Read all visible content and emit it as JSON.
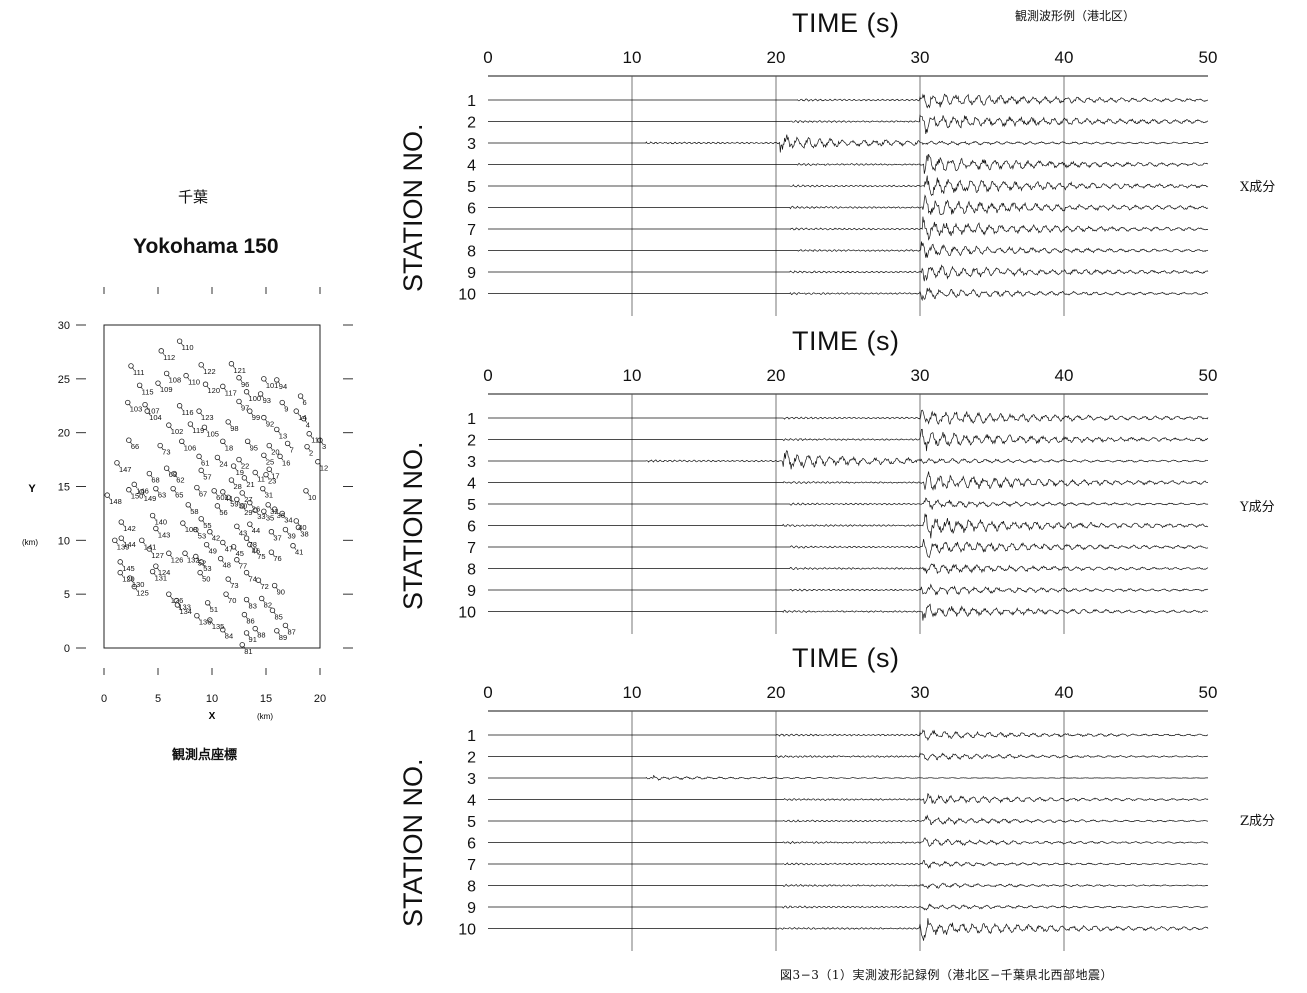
{
  "header_caption": "観測波形例（港北区）",
  "figure_caption": "図3−3（1）実測波形記録例（港北区−千葉県北西部地震）",
  "map": {
    "region_label": "千葉",
    "title": "Yokohama 150",
    "x_label": "X",
    "x_unit": "(km)",
    "y_label": "Y",
    "y_unit": "(km)",
    "x_ticks": [
      "0",
      "5",
      "10",
      "15",
      "20"
    ],
    "y_ticks": [
      "0",
      "5",
      "10",
      "15",
      "20",
      "25",
      "30"
    ],
    "caption": "観測点座標",
    "stations": [
      {
        "id": "110",
        "x": 7.0,
        "y": 28.5
      },
      {
        "id": "112",
        "x": 5.3,
        "y": 27.6
      },
      {
        "id": "111",
        "x": 2.5,
        "y": 26.2
      },
      {
        "id": "122",
        "x": 9.0,
        "y": 26.3
      },
      {
        "id": "121",
        "x": 11.8,
        "y": 26.4
      },
      {
        "id": "108",
        "x": 5.8,
        "y": 25.5
      },
      {
        "id": "110",
        "x": 7.6,
        "y": 25.3
      },
      {
        "id": "96",
        "x": 12.5,
        "y": 25.1
      },
      {
        "id": "101",
        "x": 14.8,
        "y": 25.0
      },
      {
        "id": "94",
        "x": 16.0,
        "y": 24.9
      },
      {
        "id": "115",
        "x": 3.3,
        "y": 24.4
      },
      {
        "id": "109",
        "x": 5.0,
        "y": 24.6
      },
      {
        "id": "120",
        "x": 9.4,
        "y": 24.5
      },
      {
        "id": "117",
        "x": 11.0,
        "y": 24.3
      },
      {
        "id": "100",
        "x": 13.2,
        "y": 23.8
      },
      {
        "id": "93",
        "x": 14.5,
        "y": 23.6
      },
      {
        "id": "6",
        "x": 18.2,
        "y": 23.4
      },
      {
        "id": "103",
        "x": 2.2,
        "y": 22.8
      },
      {
        "id": "107",
        "x": 3.8,
        "y": 22.6
      },
      {
        "id": "116",
        "x": 7.0,
        "y": 22.5
      },
      {
        "id": "97",
        "x": 12.5,
        "y": 22.9
      },
      {
        "id": "104",
        "x": 4.0,
        "y": 22.0
      },
      {
        "id": "123",
        "x": 8.8,
        "y": 22.0
      },
      {
        "id": "99",
        "x": 13.5,
        "y": 22.0
      },
      {
        "id": "14",
        "x": 17.8,
        "y": 22.0
      },
      {
        "id": "92",
        "x": 14.8,
        "y": 21.4
      },
      {
        "id": "9",
        "x": 16.5,
        "y": 22.8
      },
      {
        "id": "98",
        "x": 11.5,
        "y": 21.0
      },
      {
        "id": "4",
        "x": 18.5,
        "y": 21.3
      },
      {
        "id": "102",
        "x": 6.0,
        "y": 20.7
      },
      {
        "id": "119",
        "x": 8.0,
        "y": 20.8
      },
      {
        "id": "105",
        "x": 9.3,
        "y": 20.5
      },
      {
        "id": "13",
        "x": 16.0,
        "y": 20.3
      },
      {
        "id": "111",
        "x": 19.0,
        "y": 19.9
      },
      {
        "id": "66",
        "x": 2.3,
        "y": 19.3
      },
      {
        "id": "106",
        "x": 7.2,
        "y": 19.2
      },
      {
        "id": "18",
        "x": 11.0,
        "y": 19.2
      },
      {
        "id": "95",
        "x": 13.3,
        "y": 19.2
      },
      {
        "id": "20",
        "x": 15.3,
        "y": 18.8
      },
      {
        "id": "7",
        "x": 17.0,
        "y": 19.0
      },
      {
        "id": "3",
        "x": 20.0,
        "y": 19.3
      },
      {
        "id": "73",
        "x": 5.2,
        "y": 18.8
      },
      {
        "id": "2",
        "x": 18.8,
        "y": 18.7
      },
      {
        "id": "61",
        "x": 8.8,
        "y": 17.8
      },
      {
        "id": "24",
        "x": 10.5,
        "y": 17.7
      },
      {
        "id": "25",
        "x": 14.8,
        "y": 17.9
      },
      {
        "id": "16",
        "x": 16.3,
        "y": 17.8
      },
      {
        "id": "147",
        "x": 1.2,
        "y": 17.2
      },
      {
        "id": "22",
        "x": 12.5,
        "y": 17.5
      },
      {
        "id": "12",
        "x": 19.8,
        "y": 17.3
      },
      {
        "id": "69",
        "x": 5.8,
        "y": 16.7
      },
      {
        "id": "19",
        "x": 12.0,
        "y": 16.9
      },
      {
        "id": "17",
        "x": 15.3,
        "y": 16.6
      },
      {
        "id": "68",
        "x": 4.2,
        "y": 16.2
      },
      {
        "id": "62",
        "x": 6.5,
        "y": 16.2
      },
      {
        "id": "57",
        "x": 9.0,
        "y": 16.5
      },
      {
        "id": "11",
        "x": 14.0,
        "y": 16.3
      },
      {
        "id": "21",
        "x": 13.0,
        "y": 15.8
      },
      {
        "id": "23",
        "x": 15.0,
        "y": 16.1
      },
      {
        "id": "28",
        "x": 11.8,
        "y": 15.6
      },
      {
        "id": "146",
        "x": 2.8,
        "y": 15.2
      },
      {
        "id": "150",
        "x": 2.3,
        "y": 14.7
      },
      {
        "id": "149",
        "x": 3.5,
        "y": 14.5
      },
      {
        "id": "63",
        "x": 4.8,
        "y": 14.8
      },
      {
        "id": "65",
        "x": 6.4,
        "y": 14.8
      },
      {
        "id": "31",
        "x": 14.7,
        "y": 14.8
      },
      {
        "id": "10",
        "x": 18.7,
        "y": 14.6
      },
      {
        "id": "148",
        "x": 0.3,
        "y": 14.2
      },
      {
        "id": "67",
        "x": 8.6,
        "y": 14.9
      },
      {
        "id": "60",
        "x": 10.2,
        "y": 14.6
      },
      {
        "id": "41",
        "x": 11.0,
        "y": 14.5
      },
      {
        "id": "27",
        "x": 12.8,
        "y": 14.4
      },
      {
        "id": "59",
        "x": 11.5,
        "y": 14.0
      },
      {
        "id": "30",
        "x": 12.3,
        "y": 13.8
      },
      {
        "id": "26",
        "x": 13.5,
        "y": 13.5
      },
      {
        "id": "58",
        "x": 7.8,
        "y": 13.3
      },
      {
        "id": "56",
        "x": 10.5,
        "y": 13.2
      },
      {
        "id": "29",
        "x": 12.8,
        "y": 13.2
      },
      {
        "id": "32",
        "x": 15.2,
        "y": 13.3
      },
      {
        "id": "33",
        "x": 14.0,
        "y": 12.8
      },
      {
        "id": "35",
        "x": 14.8,
        "y": 12.7
      },
      {
        "id": "36",
        "x": 15.8,
        "y": 12.9
      },
      {
        "id": "34",
        "x": 16.5,
        "y": 12.5
      },
      {
        "id": "140",
        "x": 4.5,
        "y": 12.3
      },
      {
        "id": "55",
        "x": 9.0,
        "y": 12.0
      },
      {
        "id": "142",
        "x": 1.6,
        "y": 11.7
      },
      {
        "id": "40",
        "x": 17.8,
        "y": 11.8
      },
      {
        "id": "108",
        "x": 7.3,
        "y": 11.6
      },
      {
        "id": "43",
        "x": 12.3,
        "y": 11.3
      },
      {
        "id": "44",
        "x": 13.5,
        "y": 11.5
      },
      {
        "id": "143",
        "x": 4.8,
        "y": 11.1
      },
      {
        "id": "53",
        "x": 8.5,
        "y": 11.0
      },
      {
        "id": "42",
        "x": 9.8,
        "y": 10.8
      },
      {
        "id": "37",
        "x": 15.5,
        "y": 10.8
      },
      {
        "id": "39",
        "x": 16.8,
        "y": 11.0
      },
      {
        "id": "38",
        "x": 18.0,
        "y": 11.2
      },
      {
        "id": "144",
        "x": 1.6,
        "y": 10.2
      },
      {
        "id": "139",
        "x": 1.0,
        "y": 10.0
      },
      {
        "id": "141",
        "x": 3.5,
        "y": 10.0
      },
      {
        "id": "78",
        "x": 13.2,
        "y": 10.2
      },
      {
        "id": "47",
        "x": 11.0,
        "y": 9.8
      },
      {
        "id": "49",
        "x": 9.5,
        "y": 9.6
      },
      {
        "id": "45",
        "x": 12.0,
        "y": 9.4
      },
      {
        "id": "46",
        "x": 13.5,
        "y": 9.6
      },
      {
        "id": "127",
        "x": 4.2,
        "y": 9.2
      },
      {
        "id": "75",
        "x": 14.0,
        "y": 9.1
      },
      {
        "id": "76",
        "x": 15.5,
        "y": 8.9
      },
      {
        "id": "41",
        "x": 17.5,
        "y": 9.5
      },
      {
        "id": "126",
        "x": 6.0,
        "y": 8.8
      },
      {
        "id": "132",
        "x": 7.5,
        "y": 8.8
      },
      {
        "id": "52",
        "x": 8.5,
        "y": 8.5
      },
      {
        "id": "48",
        "x": 10.8,
        "y": 8.3
      },
      {
        "id": "77",
        "x": 12.3,
        "y": 8.2
      },
      {
        "id": "145",
        "x": 1.5,
        "y": 8.0
      },
      {
        "id": "124",
        "x": 4.8,
        "y": 7.6
      },
      {
        "id": "53",
        "x": 9.0,
        "y": 8.0
      },
      {
        "id": "129",
        "x": 1.5,
        "y": 7.0
      },
      {
        "id": "131",
        "x": 4.5,
        "y": 7.1
      },
      {
        "id": "50",
        "x": 8.9,
        "y": 7.0
      },
      {
        "id": "74",
        "x": 13.2,
        "y": 7.0
      },
      {
        "id": "130",
        "x": 2.4,
        "y": 6.5
      },
      {
        "id": "73",
        "x": 11.5,
        "y": 6.4
      },
      {
        "id": "72",
        "x": 14.3,
        "y": 6.3
      },
      {
        "id": "125",
        "x": 2.8,
        "y": 5.7
      },
      {
        "id": "90",
        "x": 15.8,
        "y": 5.8
      },
      {
        "id": "70",
        "x": 11.3,
        "y": 5.0
      },
      {
        "id": "126",
        "x": 6.0,
        "y": 5.0
      },
      {
        "id": "83",
        "x": 13.2,
        "y": 4.5
      },
      {
        "id": "82",
        "x": 14.6,
        "y": 4.6
      },
      {
        "id": "133",
        "x": 6.7,
        "y": 4.4
      },
      {
        "id": "134",
        "x": 6.8,
        "y": 4.0
      },
      {
        "id": "51",
        "x": 9.6,
        "y": 4.2
      },
      {
        "id": "85",
        "x": 15.6,
        "y": 3.5
      },
      {
        "id": "136",
        "x": 8.6,
        "y": 3.0
      },
      {
        "id": "86",
        "x": 13.0,
        "y": 3.1
      },
      {
        "id": "135",
        "x": 9.8,
        "y": 2.6
      },
      {
        "id": "87",
        "x": 16.8,
        "y": 2.1
      },
      {
        "id": "84",
        "x": 11.0,
        "y": 1.7
      },
      {
        "id": "88",
        "x": 14.0,
        "y": 1.8
      },
      {
        "id": "89",
        "x": 16.0,
        "y": 1.6
      },
      {
        "id": "91",
        "x": 13.2,
        "y": 1.4
      },
      {
        "id": "81",
        "x": 12.8,
        "y": 0.3
      }
    ]
  },
  "chart_data": [
    {
      "type": "line",
      "title": "TIME (s)",
      "ylabel": "STATION NO.",
      "component_label": "X成分",
      "x_ticks": [
        "0",
        "10",
        "20",
        "30",
        "40",
        "50"
      ],
      "xlim": [
        0,
        50
      ],
      "stations": [
        "1",
        "2",
        "3",
        "4",
        "5",
        "6",
        "7",
        "8",
        "9",
        "10"
      ],
      "onsets": [
        21.5,
        21.0,
        11.0,
        21.5,
        21.0,
        21.0,
        21.0,
        21.5,
        21.0,
        21.0
      ],
      "s_arrivals": [
        30.0,
        30.0,
        20.3,
        30.3,
        30.3,
        30.2,
        30.2,
        30.1,
        30.1,
        30.0
      ],
      "peak_amplitudes": [
        0.9,
        1.0,
        0.7,
        0.9,
        1.0,
        1.0,
        0.9,
        0.7,
        0.8,
        0.6
      ]
    },
    {
      "type": "line",
      "title": "TIME (s)",
      "ylabel": "STATION NO.",
      "component_label": "Y成分",
      "x_ticks": [
        "0",
        "10",
        "20",
        "30",
        "40",
        "50"
      ],
      "xlim": [
        0,
        50
      ],
      "stations": [
        "1",
        "2",
        "3",
        "4",
        "5",
        "6",
        "7",
        "8",
        "9",
        "10"
      ],
      "onsets": [
        20.5,
        20.5,
        11.0,
        20.5,
        21.0,
        20.5,
        21.0,
        21.0,
        21.0,
        20.5
      ],
      "s_arrivals": [
        30.0,
        30.0,
        20.5,
        30.3,
        30.3,
        30.2,
        30.2,
        30.2,
        30.1,
        30.2
      ],
      "peak_amplitudes": [
        0.9,
        0.9,
        0.8,
        1.0,
        0.5,
        1.0,
        0.8,
        0.6,
        0.6,
        0.7
      ]
    },
    {
      "type": "line",
      "title": "TIME (s)",
      "ylabel": "STATION NO.",
      "component_label": "Z成分",
      "x_ticks": [
        "0",
        "10",
        "20",
        "30",
        "40",
        "50"
      ],
      "xlim": [
        0,
        50
      ],
      "stations": [
        "1",
        "2",
        "3",
        "4",
        "5",
        "6",
        "7",
        "8",
        "9",
        "10"
      ],
      "onsets": [
        20.0,
        20.0,
        11.0,
        20.5,
        20.5,
        20.5,
        20.5,
        20.5,
        20.5,
        20.0
      ],
      "s_arrivals": [
        30.0,
        30.0,
        11.5,
        30.3,
        30.3,
        30.2,
        30.2,
        30.2,
        30.2,
        30.0
      ],
      "peak_amplitudes": [
        0.5,
        0.4,
        0.2,
        0.5,
        0.4,
        0.4,
        0.3,
        0.3,
        0.3,
        0.9
      ]
    }
  ]
}
